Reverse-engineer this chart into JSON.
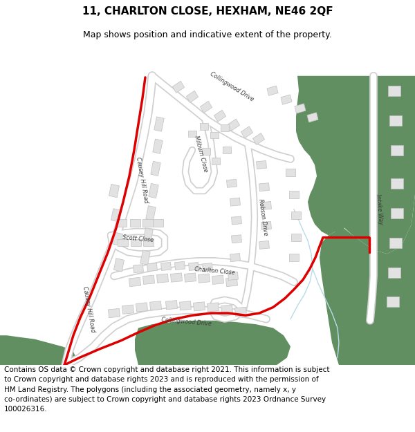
{
  "title": "11, CHARLTON CLOSE, HEXHAM, NE46 2QF",
  "subtitle": "Map shows position and indicative extent of the property.",
  "footer_line1": "Contains OS data © Crown copyright and database right 2021. This information is subject",
  "footer_line2": "to Crown copyright and database rights 2023 and is reproduced with the permission of",
  "footer_line3": "HM Land Registry. The polygons (including the associated geometry, namely x, y",
  "footer_line4": "co-ordinates) are subject to Crown copyright and database rights 2023 Ordnance Survey",
  "footer_line5": "100026316.",
  "map_bg": "#f5f5f5",
  "road_color": "#ffffff",
  "road_outline": "#d0d0d0",
  "building_color": "#e2e2e2",
  "building_edge": "#c0c0c0",
  "green_color": "#618f61",
  "red_color": "#dd0000",
  "water_color": "#b8dce8",
  "title_fontsize": 11,
  "subtitle_fontsize": 9,
  "footer_fontsize": 7.5,
  "label_fontsize": 5.8
}
